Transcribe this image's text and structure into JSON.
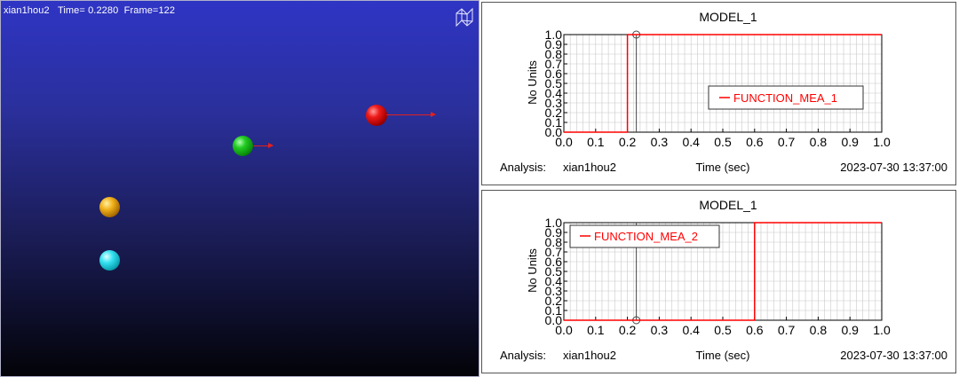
{
  "viewport": {
    "model": "xian1hou2",
    "time_label": "Time=",
    "time_value": "0.2280",
    "frame_label": "Frame=",
    "frame_value": "122",
    "background_top": "#2f35c4",
    "background_bottom": "#030308",
    "balls": [
      {
        "name": "red-ball",
        "color": "#e01010",
        "has_vector": true
      },
      {
        "name": "green-ball",
        "color": "#20c020",
        "has_vector": true
      },
      {
        "name": "orange-ball",
        "color": "#f0b020",
        "has_vector": false
      },
      {
        "name": "cyan-ball",
        "color": "#30e0f0",
        "has_vector": false
      }
    ]
  },
  "plots": [
    {
      "title": "MODEL_1",
      "ylabel": "No Units",
      "xlabel": "Time (sec)",
      "analysis_label": "Analysis:",
      "analysis_name": "xian1hou2",
      "timestamp": "2023-07-30 13:37:00",
      "legend": "FUNCTION_MEA_1",
      "legend_position": "center-right"
    },
    {
      "title": "MODEL_1",
      "ylabel": "No Units",
      "xlabel": "Time (sec)",
      "analysis_label": "Analysis:",
      "analysis_name": "xian1hou2",
      "timestamp": "2023-07-30 13:37:00",
      "legend": "FUNCTION_MEA_2",
      "legend_position": "top-left"
    }
  ],
  "chart_data": [
    {
      "type": "line",
      "title": "MODEL_1",
      "xlabel": "Time (sec)",
      "ylabel": "No Units",
      "xlim": [
        0.0,
        1.0
      ],
      "ylim": [
        0.0,
        1.0
      ],
      "xticks": [
        "0.0",
        "0.1",
        "0.2",
        "0.3",
        "0.4",
        "0.5",
        "0.6",
        "0.7",
        "0.8",
        "0.9",
        "1.0"
      ],
      "yticks": [
        "0.0",
        "0.1",
        "0.2",
        "0.3",
        "0.4",
        "0.5",
        "0.6",
        "0.7",
        "0.8",
        "0.9",
        "1.0"
      ],
      "grid": true,
      "cursor_x": 0.228,
      "series": [
        {
          "name": "FUNCTION_MEA_1",
          "color": "#ff0000",
          "x": [
            0.0,
            0.2,
            0.2,
            1.0
          ],
          "y": [
            0.0,
            0.0,
            1.0,
            1.0
          ]
        }
      ]
    },
    {
      "type": "line",
      "title": "MODEL_1",
      "xlabel": "Time (sec)",
      "ylabel": "No Units",
      "xlim": [
        0.0,
        1.0
      ],
      "ylim": [
        0.0,
        1.0
      ],
      "xticks": [
        "0.0",
        "0.1",
        "0.2",
        "0.3",
        "0.4",
        "0.5",
        "0.6",
        "0.7",
        "0.8",
        "0.9",
        "1.0"
      ],
      "yticks": [
        "0.0",
        "0.1",
        "0.2",
        "0.3",
        "0.4",
        "0.5",
        "0.6",
        "0.7",
        "0.8",
        "0.9",
        "1.0"
      ],
      "grid": true,
      "cursor_x": 0.228,
      "series": [
        {
          "name": "FUNCTION_MEA_2",
          "color": "#ff0000",
          "x": [
            0.0,
            0.6,
            0.6,
            1.0
          ],
          "y": [
            0.0,
            0.0,
            1.0,
            1.0
          ]
        }
      ]
    }
  ]
}
